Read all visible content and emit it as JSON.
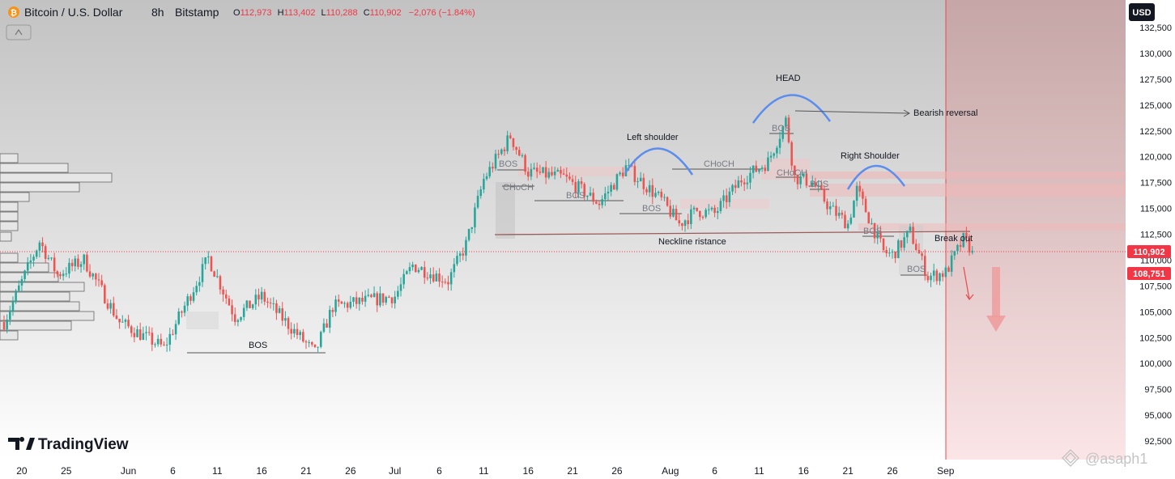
{
  "header": {
    "symbol": "Bitcoin / U.S. Dollar",
    "interval": "8h",
    "exchange": "Bitstamp",
    "o_label": "O",
    "o_value": "112,973",
    "h_label": "H",
    "h_value": "113,402",
    "l_label": "L",
    "l_value": "110,288",
    "c_label": "C",
    "c_value": "110,902",
    "change": "−2,076 (−1.84%)"
  },
  "currency_button": "USD",
  "brand": "TradingView",
  "watermark": "@asaph1",
  "colors": {
    "up": "#26a69a",
    "down": "#ef5350",
    "curve": "#5b8def",
    "shade": "#ef9a9a",
    "neckline": "#9c5a5a",
    "price_badge": "#f23645"
  },
  "chart_data": {
    "type": "candlestick",
    "y_axis": {
      "min": 92500,
      "max": 132500,
      "ticks": [
        "92,500",
        "95,000",
        "97,500",
        "100,000",
        "102,500",
        "105,000",
        "107,500",
        "110,000",
        "112,500",
        "115,000",
        "117,500",
        "120,000",
        "122,500",
        "125,000",
        "127,500",
        "130,000",
        "132,500"
      ]
    },
    "x_axis": {
      "ticks": [
        "20",
        "25",
        "Jun",
        "6",
        "11",
        "16",
        "21",
        "26",
        "Jul",
        "6",
        "11",
        "16",
        "21",
        "26",
        "Aug",
        "6",
        "11",
        "16",
        "21",
        "26",
        "Sep"
      ]
    },
    "price_labels": {
      "last": "110,902",
      "level": "108,751"
    },
    "anchors": [
      [
        "May 18",
        104000
      ],
      [
        "May 22",
        111800
      ],
      [
        "May 24",
        108600
      ],
      [
        "May 27",
        110000
      ],
      [
        "May 31",
        104000
      ],
      [
        "Jun 5",
        101500
      ],
      [
        "Jun 10",
        110200
      ],
      [
        "Jun 13",
        104500
      ],
      [
        "Jun 16",
        106500
      ],
      [
        "Jun 22",
        101000
      ],
      [
        "Jun 24",
        105500
      ],
      [
        "Jul 1",
        106500
      ],
      [
        "Jul 3",
        109500
      ],
      [
        "Jul 7",
        108000
      ],
      [
        "Jul 9",
        111500
      ],
      [
        "Jul 11",
        117800
      ],
      [
        "Jul 14",
        122000
      ],
      [
        "Jul 16",
        118500
      ],
      [
        "Jul 20",
        118000
      ],
      [
        "Jul 24",
        115500
      ],
      [
        "Jul 27",
        119000
      ],
      [
        "Jul 31",
        115800
      ],
      [
        "Aug 2",
        113500
      ],
      [
        "Aug 4",
        114800
      ],
      [
        "Aug 6",
        114500
      ],
      [
        "Aug 9",
        117800
      ],
      [
        "Aug 12",
        119500
      ],
      [
        "Aug 14",
        123500
      ],
      [
        "Aug 15",
        118000
      ],
      [
        "Aug 17",
        117500
      ],
      [
        "Aug 19",
        115000
      ],
      [
        "Aug 21",
        113500
      ],
      [
        "Aug 22",
        116800
      ],
      [
        "Aug 25",
        110800
      ],
      [
        "Aug 26",
        110500
      ],
      [
        "Aug 28",
        112700
      ],
      [
        "Aug 30",
        108400
      ],
      [
        "Sep 1",
        108800
      ],
      [
        "Sep 3",
        112000
      ],
      [
        "Sep 4",
        110902
      ]
    ],
    "annotations": {
      "head": "HEAD",
      "left_shoulder": "Left shoulder",
      "right_shoulder": "Right Shoulder",
      "bearish_reversal": "Bearish reversal",
      "neckline": "Neckline ristance",
      "break_out": "Break out",
      "choch": "CHoCH",
      "bos": "BOS"
    }
  }
}
